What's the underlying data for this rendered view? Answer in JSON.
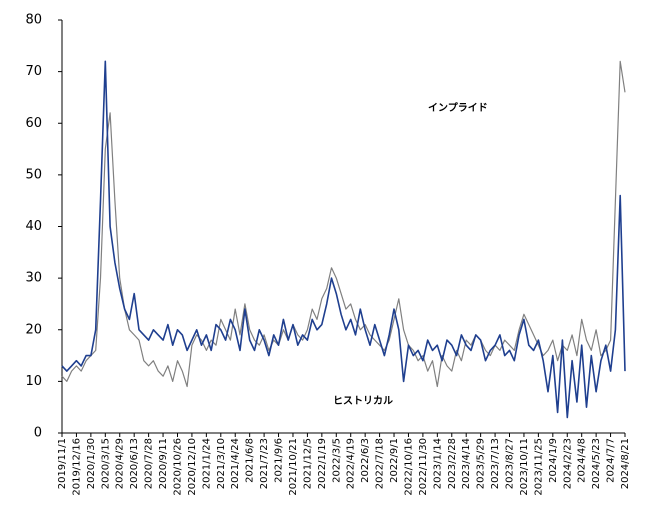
{
  "chart_data": {
    "type": "line",
    "categories": [
      "2019/11/1",
      null,
      null,
      "2019/12/16",
      null,
      null,
      "2020/1/30",
      null,
      null,
      "2020/3/15",
      null,
      null,
      "2020/4/29",
      null,
      null,
      "2020/6/13",
      null,
      null,
      "2020/7/28",
      null,
      null,
      "2020/9/11",
      null,
      null,
      "2020/10/26",
      null,
      null,
      "2020/12/10",
      null,
      null,
      "2021/1/24",
      null,
      null,
      "2021/3/10",
      null,
      null,
      "2021/4/24",
      null,
      null,
      "2021/6/8",
      null,
      null,
      "2021/7/23",
      null,
      null,
      "2021/9/6",
      null,
      null,
      "2021/10/21",
      null,
      null,
      "2021/12/5",
      null,
      null,
      "2022/1/19",
      null,
      null,
      "2022/3/5",
      null,
      null,
      "2022/4/19",
      null,
      null,
      "2022/6/3",
      null,
      null,
      "2022/7/18",
      null,
      null,
      "2022/9/1",
      null,
      null,
      "2022/10/16",
      null,
      null,
      "2022/11/30",
      null,
      null,
      "2023/1/14",
      null,
      null,
      "2023/2/28",
      null,
      null,
      "2023/4/14",
      null,
      null,
      "2023/5/29",
      null,
      null,
      "2023/7/13",
      null,
      null,
      "2023/8/27",
      null,
      null,
      "2023/10/11",
      null,
      null,
      "2023/11/25",
      null,
      null,
      "2024/1/9",
      null,
      null,
      "2024/2/23",
      null,
      null,
      "2024/4/8",
      null,
      null,
      "2024/5/23",
      null,
      null,
      "2024/7/7",
      null,
      null,
      "2024/8/21"
    ],
    "series": [
      {
        "name": "インプライド",
        "color": "#808080",
        "values": [
          11,
          10,
          12,
          13,
          12,
          14,
          15,
          16,
          30,
          55,
          62,
          45,
          30,
          24,
          20,
          19,
          18,
          14,
          13,
          14,
          12,
          11,
          13,
          10,
          14,
          12,
          9,
          17,
          19,
          18,
          16,
          18,
          17,
          22,
          20,
          18,
          24,
          19,
          25,
          20,
          18,
          17,
          19,
          16,
          18,
          17,
          20,
          18,
          21,
          19,
          18,
          20,
          24,
          22,
          26,
          28,
          32,
          30,
          27,
          24,
          25,
          22,
          20,
          21,
          19,
          18,
          17,
          16,
          18,
          22,
          26,
          20,
          17,
          16,
          14,
          15,
          12,
          14,
          9,
          15,
          13,
          12,
          16,
          14,
          18,
          17,
          19,
          18,
          16,
          15,
          17,
          16,
          18,
          17,
          16,
          20,
          23,
          21,
          19,
          17,
          15,
          16,
          18,
          14,
          17,
          16,
          19,
          15,
          22,
          18,
          16,
          20,
          15,
          16,
          18,
          45,
          72,
          66
        ]
      },
      {
        "name": "ヒストリカル",
        "color": "#1f3f8f",
        "values": [
          13,
          12,
          13,
          14,
          13,
          15,
          15,
          20,
          45,
          72,
          40,
          33,
          28,
          24,
          22,
          27,
          20,
          19,
          18,
          20,
          19,
          18,
          21,
          17,
          20,
          19,
          16,
          18,
          20,
          17,
          19,
          16,
          21,
          20,
          18,
          22,
          20,
          16,
          24,
          18,
          16,
          20,
          18,
          15,
          19,
          17,
          22,
          18,
          21,
          17,
          19,
          18,
          22,
          20,
          21,
          25,
          30,
          27,
          23,
          20,
          22,
          19,
          24,
          20,
          17,
          21,
          18,
          15,
          19,
          24,
          20,
          10,
          17,
          15,
          16,
          14,
          18,
          16,
          17,
          14,
          18,
          17,
          15,
          19,
          17,
          16,
          19,
          18,
          14,
          16,
          17,
          19,
          15,
          16,
          14,
          19,
          22,
          17,
          16,
          18,
          14,
          8,
          15,
          4,
          18,
          3,
          14,
          6,
          17,
          5,
          15,
          8,
          14,
          17,
          12,
          20,
          46,
          12
        ]
      }
    ],
    "ylim": [
      0,
      80
    ],
    "yticks": [
      0,
      10,
      20,
      30,
      40,
      50,
      60,
      70,
      80
    ]
  }
}
